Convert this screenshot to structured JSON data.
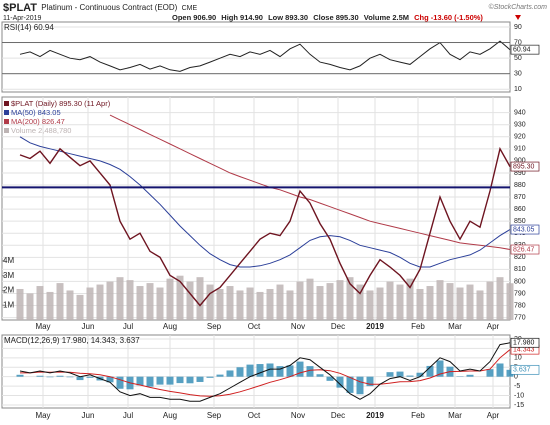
{
  "header": {
    "symbol": "$PLAT",
    "name": "Platinum - Continuous Contract (EOD)",
    "exchange": "CME",
    "credit": "©StockCharts.com",
    "date": "11-Apr-2019",
    "open": "Open 906.90",
    "high": "High 914.90",
    "low": "Low 893.30",
    "close": "Close 895.30",
    "volume": "Volume 2.5M",
    "change": "Chg -13.60 (-1.50%)"
  },
  "chart_data": [
    {
      "type": "line",
      "title": "RSI(14) 60.94",
      "ylim": [
        6.5,
        96.5
      ],
      "yticks": [
        10,
        30,
        50,
        70,
        90
      ],
      "grid": true,
      "hlines": [
        30,
        70
      ],
      "series": [
        {
          "name": "RSI(14)",
          "color": "#222222",
          "end_label": "60.94",
          "values": [
            55,
            58,
            52,
            60,
            55,
            50,
            48,
            52,
            45,
            40,
            35,
            38,
            42,
            36,
            40,
            35,
            33,
            38,
            40,
            45,
            50,
            55,
            52,
            58,
            55,
            60,
            52,
            62,
            68,
            55,
            45,
            42,
            38,
            35,
            40,
            50,
            55,
            48,
            45,
            42,
            52,
            62,
            70,
            55,
            48,
            58,
            55,
            62,
            72,
            60.94
          ]
        }
      ]
    },
    {
      "type": "line",
      "ylim": [
        768,
        953
      ],
      "yticks": [
        770,
        780,
        790,
        800,
        810,
        820,
        830,
        840,
        850,
        860,
        870,
        880,
        890,
        900,
        910,
        920,
        930,
        940
      ],
      "grid": true,
      "hlines": [
        878
      ],
      "y2lim": [
        0,
        15100000
      ],
      "y2ticks": [
        {
          "value": 1000000,
          "label": "1M"
        },
        {
          "value": 2000000,
          "label": "2M"
        },
        {
          "value": 3000000,
          "label": "3M"
        },
        {
          "value": 4000000,
          "label": "4M"
        }
      ],
      "xticks": [
        {
          "value": 2.3,
          "label": "May"
        },
        {
          "value": 6.8,
          "label": "Jun"
        },
        {
          "value": 10.8,
          "label": "Jul"
        },
        {
          "value": 15,
          "label": "Aug"
        },
        {
          "value": 19.4,
          "label": "Sep"
        },
        {
          "value": 23.4,
          "label": "Oct"
        },
        {
          "value": 27.8,
          "label": "Nov"
        },
        {
          "value": 31.8,
          "label": "Dec"
        },
        {
          "value": 35.5,
          "label": "2019"
        },
        {
          "value": 39.8,
          "label": "Feb"
        },
        {
          "value": 43.5,
          "label": "Mar"
        },
        {
          "value": 47.3,
          "label": "Apr"
        }
      ],
      "series": [
        {
          "name": "Volume 2,488,780",
          "type": "bar",
          "axis": "y2",
          "color": "#bdb4b4",
          "values": [
            2100000,
            1800000,
            2300000,
            1900000,
            2500000,
            2000000,
            1700000,
            2200000,
            2400000,
            2600000,
            2900000,
            2700000,
            2300000,
            2500000,
            2200000,
            2800000,
            3000000,
            2600000,
            2900000,
            2400000,
            2100000,
            2300000,
            2000000,
            2200000,
            1900000,
            2100000,
            2400000,
            2000000,
            2600000,
            2800000,
            2300000,
            2500000,
            2700000,
            2900000,
            2400000,
            2000000,
            2200000,
            2600000,
            2400000,
            2800000,
            2100000,
            2300000,
            2700000,
            2500000,
            2200000,
            2400000,
            2000000,
            2600000,
            2900000,
            2488780
          ]
        },
        {
          "name": "MA(200) 826.47",
          "color": "#b03a48",
          "end_label": "826.47",
          "values": [
            null,
            null,
            null,
            null,
            null,
            null,
            null,
            null,
            null,
            938,
            934,
            930,
            926,
            922,
            918,
            914,
            910,
            906,
            902,
            898,
            894,
            890,
            887,
            884,
            881,
            878,
            876,
            873,
            870,
            868,
            865,
            862,
            859,
            856,
            853,
            850,
            848,
            846,
            844,
            842,
            840,
            838,
            836,
            834,
            832,
            831,
            830,
            829,
            828,
            826.47
          ]
        },
        {
          "name": "MA(50) 843.05",
          "color": "#2b3f99",
          "end_label": "843.05",
          "values": [
            920,
            915,
            912,
            910,
            908,
            906,
            904,
            902,
            900,
            897,
            893,
            887,
            880,
            872,
            864,
            855,
            846,
            838,
            830,
            823,
            818,
            814,
            812,
            812,
            813,
            815,
            818,
            822,
            828,
            834,
            837,
            838,
            837,
            834,
            830,
            828,
            826,
            824,
            820,
            815,
            812,
            812,
            815,
            818,
            820,
            822,
            826,
            832,
            838,
            843.05
          ]
        },
        {
          "name": "$PLAT (Daily) 895.30 (11 Apr)",
          "color": "#6e1420",
          "end_label": "895.30",
          "values": [
            905,
            902,
            908,
            898,
            910,
            903,
            896,
            900,
            890,
            880,
            850,
            835,
            840,
            825,
            820,
            805,
            800,
            790,
            780,
            790,
            795,
            805,
            815,
            825,
            835,
            840,
            838,
            850,
            875,
            865,
            848,
            835,
            815,
            798,
            790,
            805,
            818,
            812,
            805,
            795,
            810,
            840,
            870,
            850,
            835,
            850,
            845,
            875,
            910,
            895.3
          ]
        }
      ]
    },
    {
      "type": "line",
      "title": "MACD(12,26,9) 17.980, 14.343, 3.637",
      "ylim": [
        -16.6,
        22.1
      ],
      "yticks": [
        -15,
        -10,
        -5,
        0,
        5,
        10,
        15,
        20
      ],
      "grid": true,
      "xticks": [
        {
          "value": 2.3,
          "label": "May"
        },
        {
          "value": 6.8,
          "label": "Jun"
        },
        {
          "value": 10.8,
          "label": "Jul"
        },
        {
          "value": 15,
          "label": "Aug"
        },
        {
          "value": 19.4,
          "label": "Sep"
        },
        {
          "value": 23.4,
          "label": "Oct"
        },
        {
          "value": 27.8,
          "label": "Nov"
        },
        {
          "value": 31.8,
          "label": "Dec"
        },
        {
          "value": 35.5,
          "label": "2019"
        },
        {
          "value": 39.8,
          "label": "Feb"
        },
        {
          "value": 43.5,
          "label": "Mar"
        },
        {
          "value": 47.3,
          "label": "Apr"
        }
      ],
      "series": [
        {
          "name": "Histogram",
          "type": "bar",
          "color": "#3a8fb7",
          "end_label": "3.637",
          "values": [
            1,
            0,
            0.5,
            -0.3,
            0.5,
            -0.3,
            -1.8,
            -0.6,
            -2,
            -3,
            -6.4,
            -6.7,
            -4.6,
            -5.3,
            -4.2,
            -4.2,
            -3.4,
            -3.5,
            -2.8,
            -0.6,
            1.1,
            3.3,
            5,
            6.4,
            6.7,
            7,
            5.6,
            6,
            8,
            5.6,
            1.3,
            -2.2,
            -5.8,
            -8.6,
            -9.3,
            -5,
            0,
            2.4,
            2.7,
            0.6,
            2.1,
            5.7,
            8.6,
            5.3,
            0.2,
            1,
            0,
            4,
            7,
            3.637
          ]
        },
        {
          "name": "Signal",
          "color": "#d02020",
          "end_label": "14.343",
          "values": [
            2,
            2,
            2.5,
            2.3,
            2.5,
            2.3,
            1.8,
            1.6,
            1,
            0,
            -1.6,
            -3.3,
            -4.4,
            -5.7,
            -6.8,
            -7.8,
            -8.6,
            -9.5,
            -10.2,
            -10.4,
            -10.1,
            -9.3,
            -8,
            -6.4,
            -4.7,
            -3,
            -1.6,
            0,
            2,
            3.4,
            3.7,
            3.2,
            1.8,
            -0.4,
            -2.7,
            -4,
            -4,
            -3.4,
            -2.7,
            -2.6,
            -2.1,
            -0.7,
            1.4,
            2.7,
            2.8,
            3,
            3,
            4,
            10,
            14.343
          ]
        },
        {
          "name": "MACD",
          "color": "#111111",
          "end_label": "17.980",
          "values": [
            3,
            2,
            3,
            2,
            3,
            2,
            0,
            1,
            -1,
            -3,
            -8,
            -10,
            -9,
            -11,
            -11,
            -12,
            -12,
            -13,
            -13,
            -11,
            -9,
            -6,
            -3,
            0,
            2,
            4,
            4,
            6,
            10,
            9,
            5,
            1,
            -4,
            -9,
            -12,
            -9,
            -4,
            -1,
            0,
            -2,
            0,
            5,
            10,
            8,
            3,
            4,
            3,
            8,
            17,
            17.98
          ]
        }
      ]
    }
  ]
}
